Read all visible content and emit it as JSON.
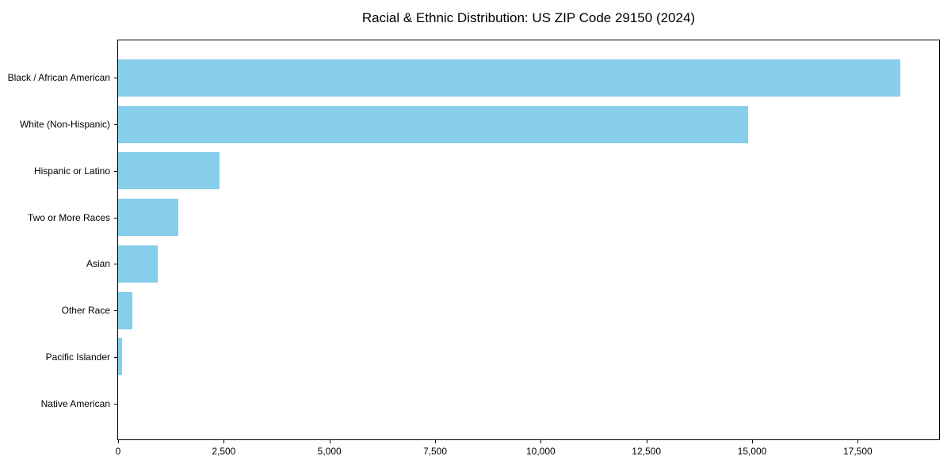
{
  "chart_data": {
    "type": "bar",
    "orientation": "horizontal",
    "title": "Racial & Ethnic Distribution: US ZIP Code 29150 (2024)",
    "categories": [
      "Black / African American",
      "White (Non-Hispanic)",
      "Hispanic or Latino",
      "Two or More Races",
      "Asian",
      "Other Race",
      "Pacific Islander",
      "Native American"
    ],
    "values": [
      18500,
      14900,
      2400,
      1420,
      940,
      330,
      90,
      0
    ],
    "xlabel": "",
    "ylabel": "",
    "xlim": [
      0,
      19425
    ],
    "x_ticks": [
      0,
      2500,
      5000,
      7500,
      10000,
      12500,
      15000,
      17500
    ],
    "x_tick_labels": [
      "0",
      "2,500",
      "5,000",
      "7,500",
      "10,000",
      "12,500",
      "15,000",
      "17,500"
    ],
    "bar_color": "#87CEEB",
    "spine_color": "#000000",
    "background_color": "#ffffff",
    "grid": false,
    "legend": null
  }
}
